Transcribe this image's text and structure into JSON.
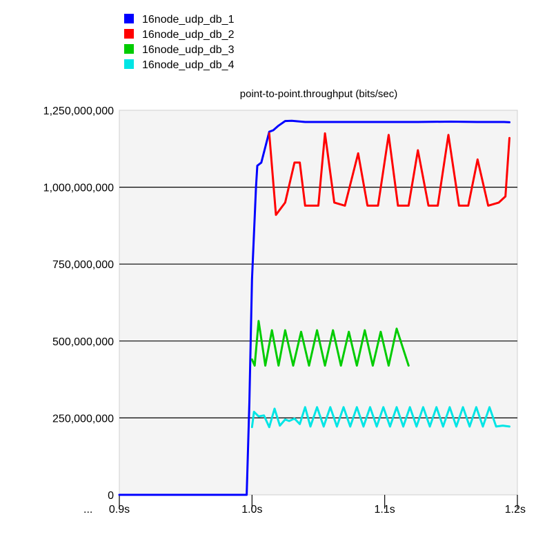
{
  "chart_data": {
    "type": "line",
    "title": "point-to-point.throughput (bits/sec)",
    "xlabel": "",
    "ylabel": "",
    "xlim": [
      0.9,
      1.2
    ],
    "ylim": [
      0,
      1250000000
    ],
    "x_tick_labels": [
      {
        "value": 0.9,
        "label": "0.9s"
      },
      {
        "value": 1.0,
        "label": "1.0s"
      },
      {
        "value": 1.1,
        "label": "1.1s"
      },
      {
        "value": 1.2,
        "label": "1.2s"
      }
    ],
    "x_axis_prefix": "...",
    "y_tick_labels": [
      {
        "value": 0,
        "label": "0"
      },
      {
        "value": 250000000,
        "label": "250,000,000"
      },
      {
        "value": 500000000,
        "label": "500,000,000"
      },
      {
        "value": 750000000,
        "label": "750,000,000"
      },
      {
        "value": 1000000000,
        "label": "1,000,000,000"
      },
      {
        "value": 1250000000,
        "label": "1,250,000,000"
      }
    ],
    "grid": "horizontal",
    "legend_position": "top-left",
    "background": "#ffffff",
    "plot_background": "#f4f4f4",
    "series": [
      {
        "name": "16node_udp_db_1",
        "color": "#0000ff",
        "points": [
          [
            0.9,
            0
          ],
          [
            0.99,
            0
          ],
          [
            0.996,
            0
          ],
          [
            0.998,
            300000000
          ],
          [
            1.0,
            700000000
          ],
          [
            1.003,
            1000000000
          ],
          [
            1.004,
            1070000000
          ],
          [
            1.007,
            1080000000
          ],
          [
            1.013,
            1180000000
          ],
          [
            1.016,
            1185000000
          ],
          [
            1.02,
            1200000000
          ],
          [
            1.025,
            1215000000
          ],
          [
            1.03,
            1216000000
          ],
          [
            1.04,
            1212000000
          ],
          [
            1.05,
            1212000000
          ],
          [
            1.075,
            1212000000
          ],
          [
            1.1,
            1212000000
          ],
          [
            1.125,
            1212000000
          ],
          [
            1.15,
            1213000000
          ],
          [
            1.17,
            1212000000
          ],
          [
            1.19,
            1212000000
          ],
          [
            1.194,
            1211000000
          ]
        ]
      },
      {
        "name": "16node_udp_db_2",
        "color": "#ff0000",
        "points": [
          [
            1.013,
            1175000000
          ],
          [
            1.018,
            910000000
          ],
          [
            1.025,
            950000000
          ],
          [
            1.032,
            1080000000
          ],
          [
            1.036,
            1080000000
          ],
          [
            1.04,
            940000000
          ],
          [
            1.05,
            940000000
          ],
          [
            1.055,
            1175000000
          ],
          [
            1.062,
            950000000
          ],
          [
            1.07,
            940000000
          ],
          [
            1.08,
            1110000000
          ],
          [
            1.087,
            940000000
          ],
          [
            1.095,
            940000000
          ],
          [
            1.103,
            1170000000
          ],
          [
            1.11,
            940000000
          ],
          [
            1.118,
            940000000
          ],
          [
            1.125,
            1120000000
          ],
          [
            1.133,
            940000000
          ],
          [
            1.14,
            940000000
          ],
          [
            1.148,
            1170000000
          ],
          [
            1.156,
            940000000
          ],
          [
            1.163,
            940000000
          ],
          [
            1.17,
            1090000000
          ],
          [
            1.178,
            940000000
          ],
          [
            1.186,
            950000000
          ],
          [
            1.191,
            970000000
          ],
          [
            1.194,
            1160000000
          ]
        ]
      },
      {
        "name": "16node_udp_db_3",
        "color": "#00cc00",
        "points": [
          [
            1.0,
            440000000
          ],
          [
            1.002,
            420000000
          ],
          [
            1.005,
            565000000
          ],
          [
            1.01,
            420000000
          ],
          [
            1.015,
            535000000
          ],
          [
            1.02,
            420000000
          ],
          [
            1.025,
            535000000
          ],
          [
            1.031,
            420000000
          ],
          [
            1.037,
            530000000
          ],
          [
            1.043,
            420000000
          ],
          [
            1.049,
            535000000
          ],
          [
            1.055,
            420000000
          ],
          [
            1.061,
            535000000
          ],
          [
            1.067,
            420000000
          ],
          [
            1.073,
            530000000
          ],
          [
            1.079,
            420000000
          ],
          [
            1.085,
            535000000
          ],
          [
            1.091,
            420000000
          ],
          [
            1.097,
            530000000
          ],
          [
            1.103,
            420000000
          ],
          [
            1.109,
            540000000
          ],
          [
            1.118,
            420000000
          ]
        ]
      },
      {
        "name": "16node_udp_db_4",
        "color": "#00e5e5",
        "points": [
          [
            1.0,
            220000000
          ],
          [
            1.0015,
            270000000
          ],
          [
            1.005,
            255000000
          ],
          [
            1.009,
            258000000
          ],
          [
            1.013,
            220000000
          ],
          [
            1.017,
            280000000
          ],
          [
            1.021,
            225000000
          ],
          [
            1.025,
            245000000
          ],
          [
            1.028,
            240000000
          ],
          [
            1.032,
            248000000
          ],
          [
            1.036,
            230000000
          ],
          [
            1.04,
            285000000
          ],
          [
            1.044,
            222000000
          ],
          [
            1.049,
            285000000
          ],
          [
            1.054,
            222000000
          ],
          [
            1.059,
            285000000
          ],
          [
            1.064,
            222000000
          ],
          [
            1.069,
            285000000
          ],
          [
            1.074,
            222000000
          ],
          [
            1.079,
            285000000
          ],
          [
            1.084,
            222000000
          ],
          [
            1.089,
            285000000
          ],
          [
            1.094,
            222000000
          ],
          [
            1.099,
            285000000
          ],
          [
            1.104,
            222000000
          ],
          [
            1.109,
            285000000
          ],
          [
            1.114,
            222000000
          ],
          [
            1.119,
            285000000
          ],
          [
            1.124,
            222000000
          ],
          [
            1.129,
            285000000
          ],
          [
            1.134,
            222000000
          ],
          [
            1.139,
            285000000
          ],
          [
            1.144,
            222000000
          ],
          [
            1.149,
            285000000
          ],
          [
            1.154,
            222000000
          ],
          [
            1.159,
            285000000
          ],
          [
            1.164,
            222000000
          ],
          [
            1.169,
            285000000
          ],
          [
            1.174,
            222000000
          ],
          [
            1.179,
            285000000
          ],
          [
            1.184,
            222000000
          ],
          [
            1.189,
            225000000
          ],
          [
            1.194,
            222000000
          ]
        ]
      }
    ]
  }
}
